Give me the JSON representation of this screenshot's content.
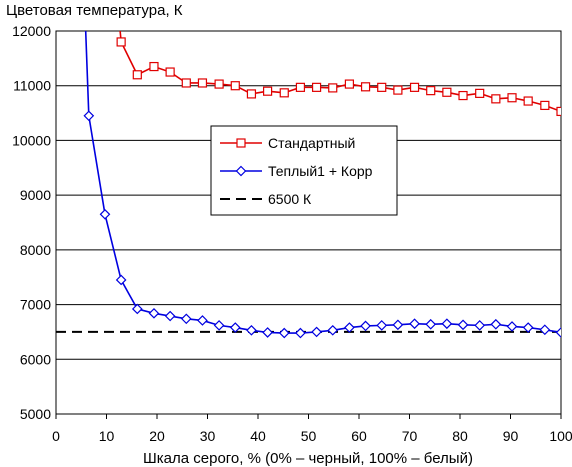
{
  "chart_data": {
    "type": "line",
    "title": "",
    "ylabel": "Цветовая температура, К",
    "xlabel": "Шкала серого, % (0% – черный, 100% – белый)",
    "xlim": [
      0,
      100
    ],
    "ylim": [
      5000,
      12000
    ],
    "xticks": [
      0,
      10,
      20,
      30,
      40,
      50,
      60,
      70,
      80,
      90,
      100
    ],
    "yticks": [
      5000,
      6000,
      7000,
      8000,
      9000,
      10000,
      11000,
      12000
    ],
    "xtick_labels": [
      "0",
      "10",
      "20",
      "30",
      "40",
      "50",
      "60",
      "70",
      "80",
      "90",
      "100"
    ],
    "ytick_labels": [
      "5000",
      "6000",
      "7000",
      "8000",
      "9000",
      "10000",
      "11000",
      "12000"
    ],
    "grid": "horizontal",
    "legend_position": "center-right",
    "series": [
      {
        "name": "Стандартный",
        "color": "#e00000",
        "marker": "square",
        "x": [
          12.9,
          16.1,
          19.4,
          22.6,
          25.8,
          29.0,
          32.3,
          35.5,
          38.7,
          41.9,
          45.2,
          48.4,
          51.6,
          54.8,
          58.1,
          61.3,
          64.5,
          67.7,
          71.0,
          74.2,
          77.4,
          80.6,
          83.9,
          87.1,
          90.3,
          93.5,
          96.8,
          100
        ],
        "y": [
          11800,
          11200,
          11350,
          11250,
          11050,
          11050,
          11030,
          11000,
          10850,
          10900,
          10870,
          10970,
          10970,
          10960,
          11030,
          10980,
          10970,
          10920,
          10970,
          10910,
          10880,
          10820,
          10860,
          10760,
          10780,
          10720,
          10640,
          10530
        ],
        "line_extends_to": [
          12.0,
          12700
        ]
      },
      {
        "name": "Теплый1 + Корр",
        "color": "#0000e0",
        "marker": "diamond",
        "x": [
          6.5,
          9.7,
          12.9,
          16.1,
          19.4,
          22.6,
          25.8,
          29.0,
          32.3,
          35.5,
          38.7,
          41.9,
          45.2,
          48.4,
          51.6,
          54.8,
          58.1,
          61.3,
          64.5,
          67.7,
          71.0,
          74.2,
          77.4,
          80.6,
          83.9,
          87.1,
          90.3,
          93.5,
          96.8,
          100
        ],
        "y": [
          10450,
          8650,
          7450,
          6920,
          6840,
          6790,
          6740,
          6710,
          6620,
          6580,
          6530,
          6490,
          6480,
          6480,
          6500,
          6530,
          6580,
          6610,
          6620,
          6630,
          6650,
          6640,
          6650,
          6630,
          6620,
          6640,
          6600,
          6580,
          6540,
          6490
        ],
        "line_extends_to": [
          5.6,
          12700
        ]
      },
      {
        "name": "6500 К",
        "color": "#000000",
        "marker": "none",
        "dash": true,
        "x": [
          0,
          100
        ],
        "y": [
          6500,
          6500
        ]
      }
    ]
  }
}
